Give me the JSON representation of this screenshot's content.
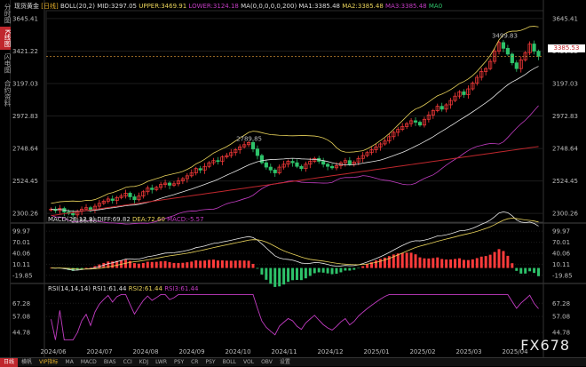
{
  "header": {
    "symbol": "现货黄金",
    "period": "[日线]",
    "boll": "BOLL(20,2) MID:3297.05",
    "upper": "UPPER:3469.91",
    "lower": "LOWER:3124.18",
    "ma": "MA(0,0,0,0,0,200) MA1:3385.48",
    "ma2": "MA2:3385.48",
    "ma3": "MA3:3385.48",
    "ma0": "MA0"
  },
  "left_tabs": [
    "分时图",
    "K线图",
    "闪电图",
    "合约资料"
  ],
  "price_axis": [
    "3645.41",
    "3421.22",
    "3197.03",
    "2972.83",
    "2748.64",
    "2524.45",
    "2300.26"
  ],
  "current_price": "3385.53",
  "annotations": {
    "high": "3499.83",
    "mid_high": "2789.85",
    "low": "2286.68"
  },
  "macd": {
    "title": "MACD(26,12,9)",
    "diff": "DIFF:69.82",
    "dea": "DEA:72.60",
    "macd": "MACD:-5.57",
    "axis": [
      "99.97",
      "70.01",
      "40.06",
      "10.11",
      "-19.85"
    ]
  },
  "rsi": {
    "title": "RSI(14,14,14)",
    "rsi1": "RSI1:61.44",
    "rsi2": "RSI2:61.44",
    "rsi3": "RSI3:61.44",
    "axis": [
      "67.28",
      "57.08",
      "44.78"
    ]
  },
  "dates": [
    "2024/06",
    "2024/07",
    "2024/08",
    "2024/09",
    "2024/10",
    "2024/11",
    "2024/12",
    "2025/01",
    "2025/02",
    "2025/03",
    "2025/04"
  ],
  "bottom_tabs": [
    "日线",
    "横帆",
    "VIP指标",
    "MA",
    "MACD",
    "BIAS",
    "CCI",
    "KDJ",
    "LWR",
    "PSY",
    "CR",
    "PSY",
    "BOLL",
    "VOL",
    "OBV",
    "设置"
  ],
  "watermark": "FX678",
  "colors": {
    "up": "#ff3b3b",
    "down": "#2ec26a",
    "upper": "#e8d25a",
    "lower": "#c23cc2",
    "mid": "#e8e8e8",
    "ma200": "#c0272d"
  },
  "chart_data": {
    "type": "candlestick",
    "price_ylim": [
      2240,
      3700
    ],
    "closes": [
      2330,
      2320,
      2335,
      2310,
      2300,
      2290,
      2315,
      2330,
      2340,
      2325,
      2350,
      2370,
      2385,
      2400,
      2390,
      2410,
      2420,
      2440,
      2415,
      2395,
      2420,
      2450,
      2475,
      2465,
      2480,
      2500,
      2510,
      2495,
      2505,
      2525,
      2540,
      2560,
      2580,
      2610,
      2600,
      2625,
      2650,
      2665,
      2660,
      2690,
      2700,
      2720,
      2740,
      2760,
      2775,
      2790,
      2745,
      2700,
      2650,
      2620,
      2600,
      2580,
      2620,
      2640,
      2660,
      2650,
      2625,
      2610,
      2640,
      2660,
      2680,
      2660,
      2640,
      2625,
      2615,
      2630,
      2650,
      2665,
      2640,
      2655,
      2680,
      2700,
      2720,
      2740,
      2760,
      2780,
      2800,
      2830,
      2860,
      2880,
      2900,
      2920,
      2940,
      2930,
      2910,
      2950,
      2980,
      3010,
      3040,
      3020,
      3050,
      3080,
      3110,
      3140,
      3120,
      3160,
      3200,
      3240,
      3280,
      3300,
      3350,
      3420,
      3480,
      3440,
      3400,
      3340,
      3300,
      3360,
      3410,
      3470,
      3420,
      3385
    ],
    "rsi_ylim": [
      38,
      75
    ],
    "macd_ylim": [
      -30,
      110
    ]
  }
}
